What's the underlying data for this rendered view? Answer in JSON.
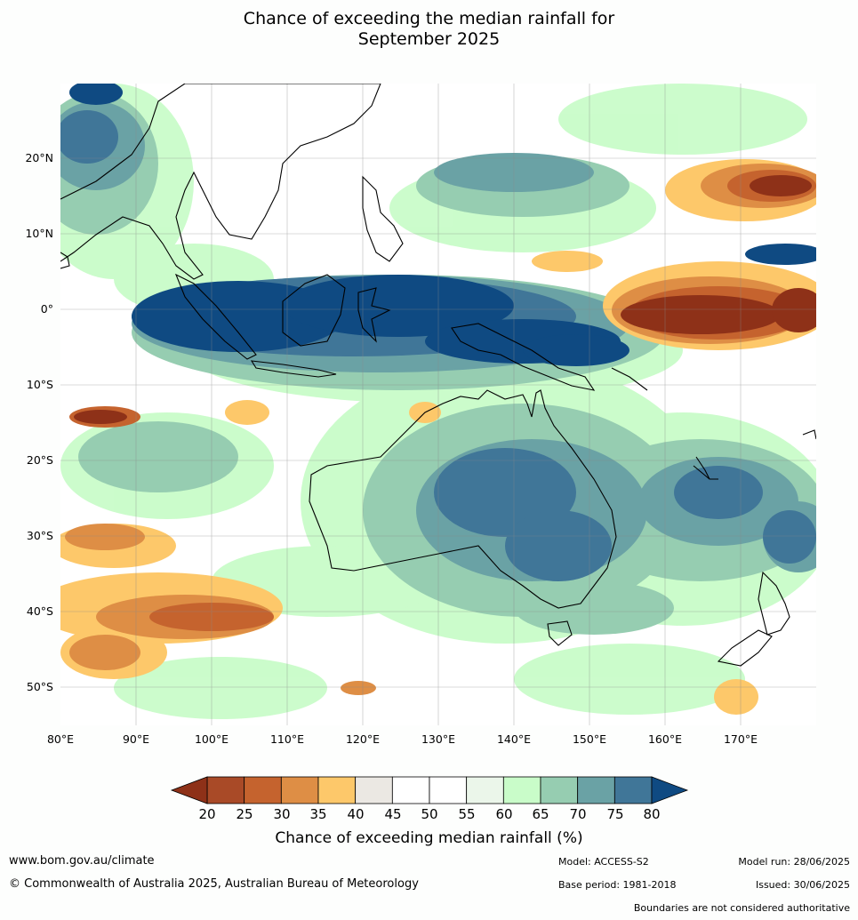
{
  "title_line1": "Chance of exceeding the median rainfall for",
  "title_line2": "September 2025",
  "map": {
    "lon_range": [
      80,
      180
    ],
    "lat_range": [
      -55,
      30
    ],
    "lat_ticks": [
      "20°N",
      "10°N",
      "0°",
      "10°S",
      "20°S",
      "30°S",
      "40°S",
      "50°S"
    ],
    "lon_ticks": [
      "80°E",
      "90°E",
      "100°E",
      "110°E",
      "120°E",
      "130°E",
      "140°E",
      "150°E",
      "160°E",
      "170°E"
    ]
  },
  "colorbar": {
    "labels": [
      "20",
      "25",
      "30",
      "35",
      "40",
      "45",
      "50",
      "55",
      "60",
      "65",
      "70",
      "75",
      "80"
    ],
    "colors": [
      "#a94a27",
      "#c5632e",
      "#de8e45",
      "#fdc86a",
      "#ebe8e3",
      "#ffffff",
      "#ffffff",
      "#ebf6ea",
      "#c9fcc9",
      "#96cdb1",
      "#6aa2a5",
      "#407698"
    ],
    "low_color": "#8e3118",
    "high_color": "#0f4a82",
    "title": "Chance of exceeding median rainfall (%)"
  },
  "footer": {
    "website": "www.bom.gov.au/climate",
    "copyright": "© Commonwealth of Australia 2025, Australian Bureau of Meteorology",
    "model": "Model: ACCESS-S2",
    "base_period": "Base period: 1981-2018",
    "model_run": "Model run: 28/06/2025",
    "issued": "Issued: 30/06/2025",
    "disclaimer": "Boundaries are not considered authoritative"
  }
}
